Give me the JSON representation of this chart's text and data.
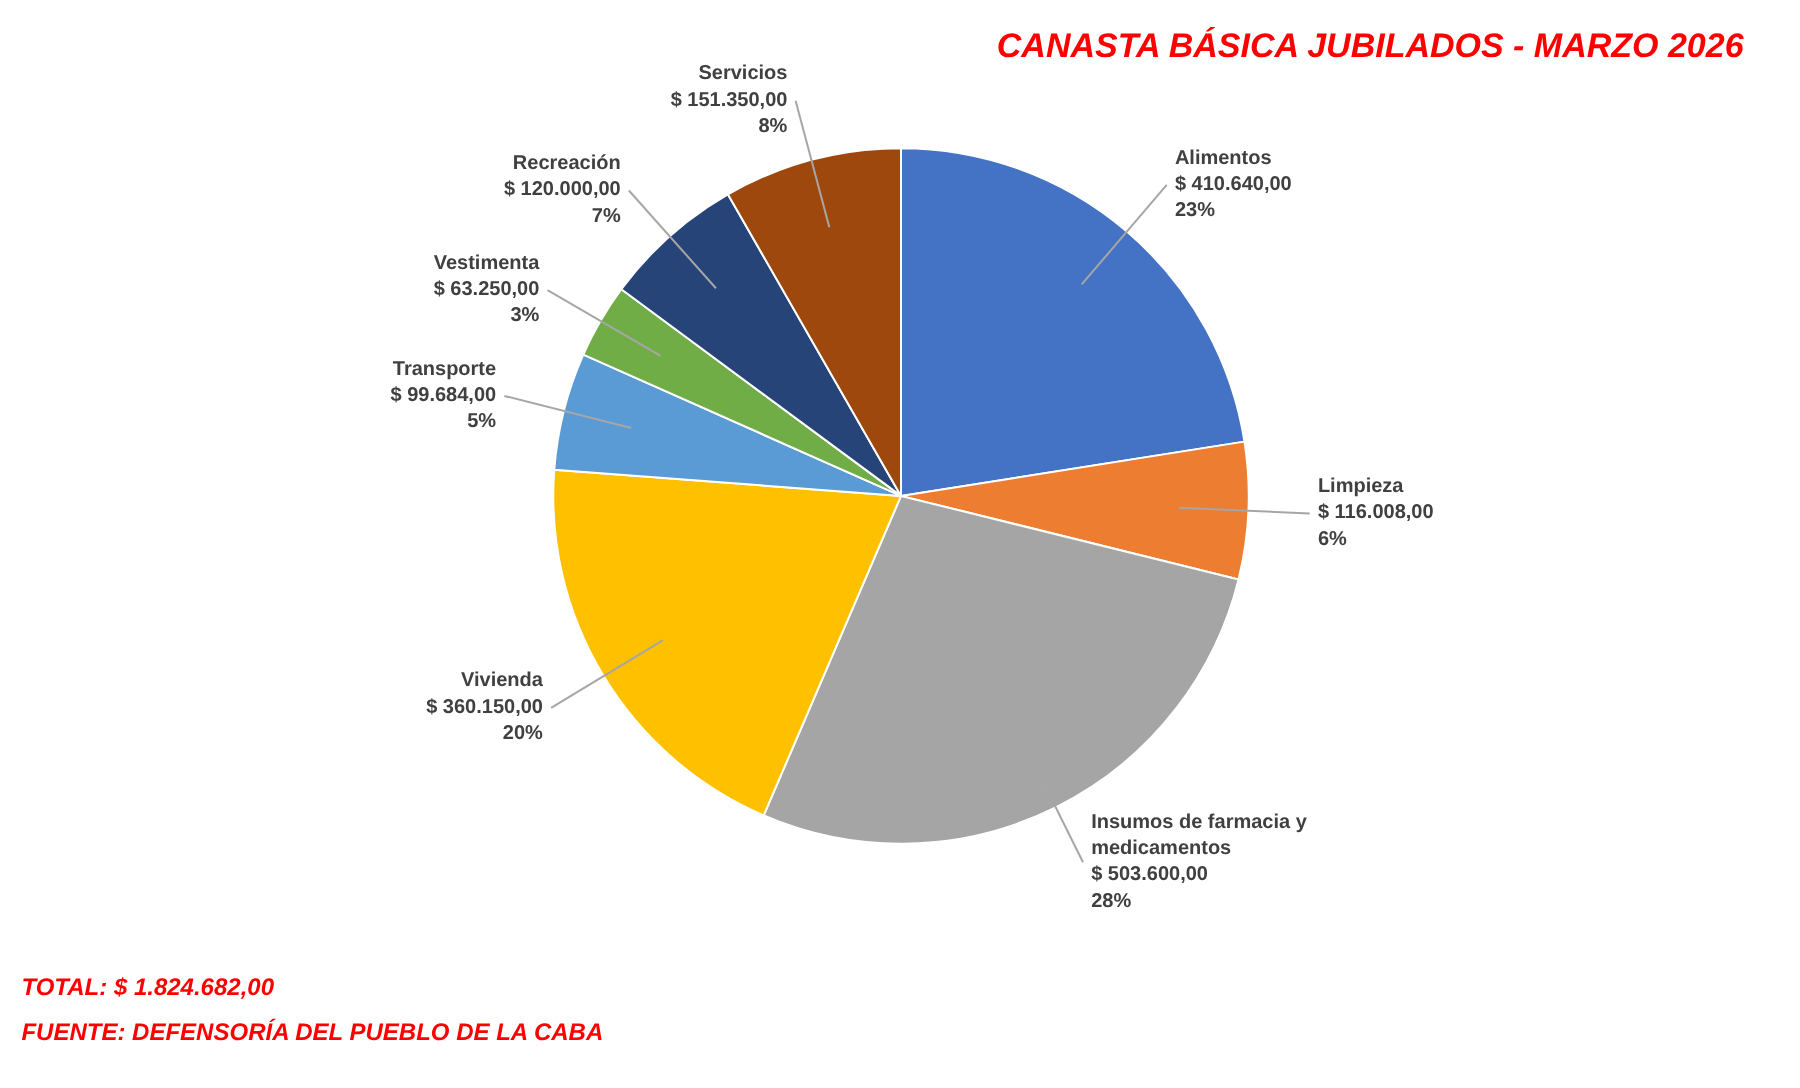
{
  "chart_data": {
    "type": "pie",
    "title": "CANASTA BÁSICA JUBILADOS - MARZO 2026",
    "categories": [
      "Alimentos",
      "Limpieza",
      "Insumos de farmacia y medicamentos",
      "Vivienda",
      "Transporte",
      "Vestimenta",
      "Recreación",
      "Servicios"
    ],
    "values": [
      410640,
      116008,
      503600,
      360150,
      99684,
      63250,
      120000,
      151350
    ],
    "value_labels": [
      "$ 410.640,00\n23%",
      "$ 116.008,00\n6%",
      "$ 503.600,00\n28%",
      "$ 360.150,00\n20%",
      "$ 99.684,00\n5%",
      "$ 63.250,00\n3%",
      "$ 120.000,00\n7%",
      "$ 151.350,00\n8%"
    ],
    "colors": [
      "#4472c4",
      "#ed7d31",
      "#a5a5a5",
      "#ffc000",
      "#5b9bd5",
      "#70ad47",
      "#264478",
      "#9e480e"
    ],
    "annotations": [
      "TOTAL: $ 1.824.682,00",
      "FUENTE: DEFENSORÍA DEL PUEBLO DE LA CABA"
    ]
  }
}
